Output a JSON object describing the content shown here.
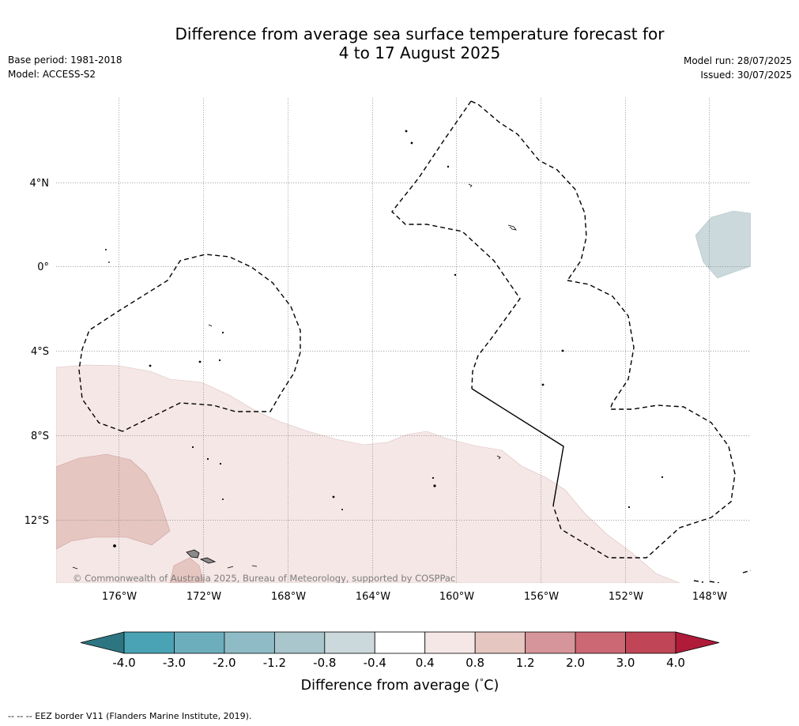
{
  "header": {
    "title_line1": "Difference from average sea surface temperature forecast for",
    "title_line2": "4 to 17 August 2025",
    "base_period": "Base period: 1981-2018",
    "model": "Model: ACCESS-S2",
    "model_run": "Model run: 28/07/2025",
    "issued": "Issued: 30/07/2025"
  },
  "map": {
    "longitude_labels": [
      "176°W",
      "172°W",
      "168°W",
      "164°W",
      "160°W",
      "156°W",
      "152°W",
      "148°W"
    ],
    "latitude_labels": [
      "4°N",
      "0°",
      "4°S",
      "8°S",
      "12°S"
    ],
    "copyright": "© Commonwealth of Australia 2025, Bureau of Meteorology, supported by COSPPac",
    "gridlines": "dotted"
  },
  "legend": {
    "label": "Difference from average (°C)",
    "label_prefix": "Difference from average (",
    "label_degree": "°",
    "label_suffix": "C)",
    "ticks": [
      "-4.0",
      "-3.0",
      "-2.0",
      "-1.2",
      "-0.8",
      "-0.4",
      "0.4",
      "0.8",
      "1.2",
      "2.0",
      "3.0",
      "4.0"
    ],
    "colors": {
      "below_min": "#2e7582",
      "bins": [
        "#4aa3b4",
        "#6daebc",
        "#8ebbc6",
        "#a9c6cc",
        "#cbd8dc",
        "#ffffff",
        "#f5e7e6",
        "#e6c6c1",
        "#d6959a",
        "#cb6874",
        "#c04556"
      ],
      "above_max": "#b01b3a"
    }
  },
  "footer": {
    "eez_note": "--  --  -- EEZ border V11 (Flanders Marine Institute, 2019)."
  }
}
